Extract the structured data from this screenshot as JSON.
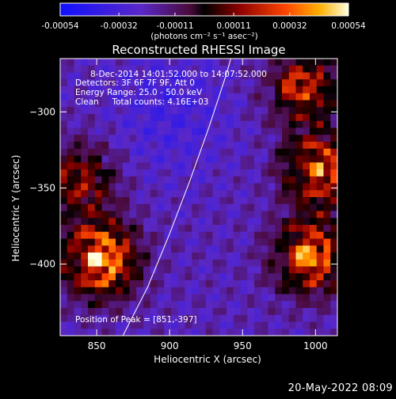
{
  "chart_data": {
    "type": "heatmap",
    "title": "Reconstructed RHESSI Image",
    "xlabel": "Heliocentric X (arcsec)",
    "ylabel": "Heliocentric Y (arcsec)",
    "xlim": [
      825,
      1015
    ],
    "ylim": [
      -447,
      -265
    ],
    "x_ticks": [
      850,
      900,
      950,
      1000
    ],
    "y_ticks": [
      -300,
      -350,
      -400
    ],
    "grid": false,
    "colorbar": {
      "ticks": [
        "-0.00054",
        "-0.00032",
        "-0.00011",
        "0.00011",
        "0.00032",
        "0.00054"
      ],
      "unit_label": "(photons cm⁻² s⁻¹ asec⁻²)",
      "vmin": -0.00054,
      "vmax": 0.00054
    },
    "annotations": [
      "8-Dec-2014 14:01:52.000 to 14:07:52.000",
      "Detectors: 3F 6F 7F 9F, Att 0",
      "Energy Range: 25.0 - 50.0 keV",
      "Clean     Total counts: 4.16E+03"
    ],
    "peak_text": "Position of Peak = [851,-397]",
    "peak": [
      851,
      -397
    ],
    "limb": [
      [
        868,
        -447
      ],
      [
        885,
        -415
      ],
      [
        900,
        -380
      ],
      [
        914,
        -345
      ],
      [
        927,
        -310
      ],
      [
        939,
        -275
      ],
      [
        942,
        -265
      ]
    ],
    "sources": [
      {
        "x": 853,
        "y": -397,
        "amp": 1.0
      },
      {
        "x": 997,
        "y": -395,
        "amp": 0.85
      },
      {
        "x": 1003,
        "y": -338,
        "amp": 0.78
      },
      {
        "x": 992,
        "y": -283,
        "amp": 0.65
      },
      {
        "x": 839,
        "y": -345,
        "amp": 0.55
      }
    ]
  },
  "footer": {
    "timestamp": "20-May-2022 08:09"
  }
}
